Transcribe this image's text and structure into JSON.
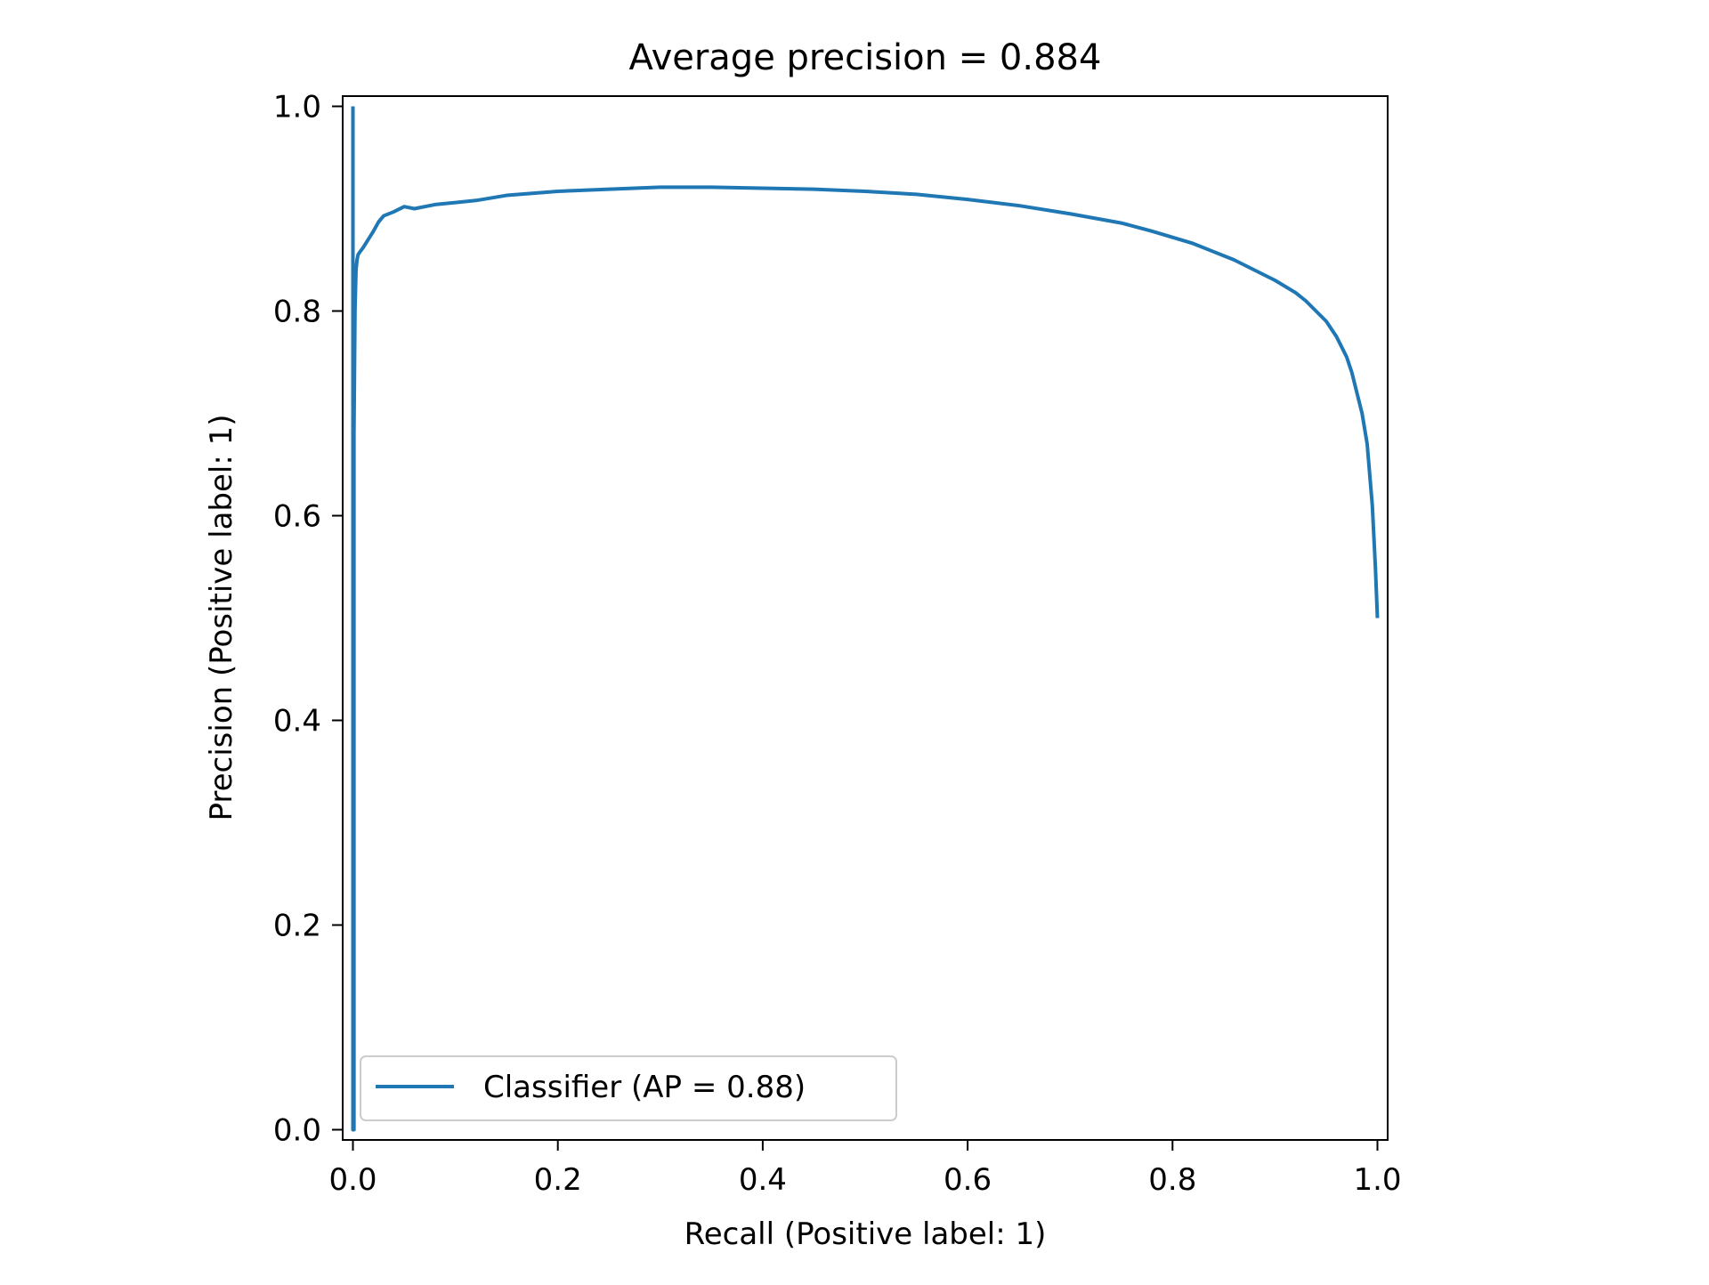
{
  "chart_data": {
    "type": "line",
    "title": "Average precision = 0.884",
    "xlabel": "Recall (Positive label: 1)",
    "ylabel": "Precision (Positive label: 1)",
    "xlim": [
      -0.01,
      1.01
    ],
    "ylim": [
      -0.01,
      1.01
    ],
    "xticks": [
      0.0,
      0.2,
      0.4,
      0.6,
      0.8,
      1.0
    ],
    "xtick_labels": [
      "0.0",
      "0.2",
      "0.4",
      "0.6",
      "0.8",
      "1.0"
    ],
    "yticks": [
      0.0,
      0.2,
      0.4,
      0.6,
      0.8,
      1.0
    ],
    "ytick_labels": [
      "0.0",
      "0.2",
      "0.4",
      "0.6",
      "0.8",
      "1.0"
    ],
    "grid": false,
    "legend_position": "lower left",
    "series": [
      {
        "name": "Classifier (AP = 0.88)",
        "color": "#1f77b4",
        "x": [
          1.0,
          0.998,
          0.995,
          0.99,
          0.985,
          0.98,
          0.975,
          0.97,
          0.965,
          0.96,
          0.95,
          0.94,
          0.93,
          0.92,
          0.9,
          0.88,
          0.86,
          0.84,
          0.82,
          0.8,
          0.78,
          0.75,
          0.7,
          0.65,
          0.6,
          0.55,
          0.5,
          0.45,
          0.4,
          0.35,
          0.3,
          0.25,
          0.2,
          0.15,
          0.12,
          0.1,
          0.08,
          0.06,
          0.05,
          0.04,
          0.03,
          0.025,
          0.02,
          0.015,
          0.01,
          0.007,
          0.005,
          0.004,
          0.003,
          0.002,
          0.001,
          0.001,
          0.001,
          0.001,
          0.0005,
          0.0,
          0.0,
          0.0
        ],
        "y": [
          0.5,
          0.55,
          0.61,
          0.67,
          0.7,
          0.72,
          0.74,
          0.755,
          0.765,
          0.775,
          0.79,
          0.8,
          0.81,
          0.818,
          0.83,
          0.84,
          0.85,
          0.858,
          0.866,
          0.872,
          0.878,
          0.886,
          0.895,
          0.903,
          0.909,
          0.914,
          0.917,
          0.919,
          0.92,
          0.921,
          0.921,
          0.919,
          0.917,
          0.913,
          0.908,
          0.906,
          0.904,
          0.9,
          0.902,
          0.897,
          0.893,
          0.887,
          0.878,
          0.87,
          0.862,
          0.858,
          0.855,
          0.85,
          0.84,
          0.8,
          0.68,
          0.45,
          0.2,
          0.0,
          0.0,
          0.0,
          1.0,
          1.0
        ]
      }
    ]
  }
}
